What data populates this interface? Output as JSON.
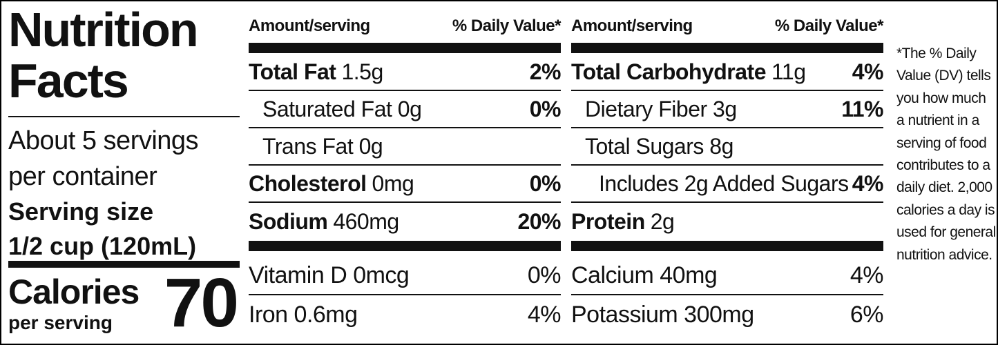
{
  "title": "Nutrition Facts",
  "servings": "About 5 servings per container",
  "serving_size_label": "Serving size",
  "serving_size": "1/2 cup (120mL)",
  "calories_label": "Calories",
  "calories_sub": "per serving",
  "calories": 70,
  "columns": [
    {
      "amount_header": "Amount/serving",
      "dv_header": "% Daily Value*",
      "rows": [
        {
          "name": "Total Fat",
          "amount": "1.5g",
          "dv": "2%",
          "bold": true,
          "indent": 0
        },
        {
          "name": "Saturated Fat 0g",
          "dv": "0%",
          "bold": false,
          "indent": 1
        },
        {
          "name": "Trans Fat 0g",
          "bold": false,
          "indent": 1
        },
        {
          "name": "Cholesterol",
          "amount": "0mg",
          "dv": "0%",
          "bold": true,
          "indent": 0
        },
        {
          "name": "Sodium",
          "amount": "460mg",
          "dv": "20%",
          "bold": true,
          "indent": 0
        }
      ],
      "vitamins": [
        {
          "name": "Vitamin D 0mcg",
          "dv": "0%"
        },
        {
          "name": "Iron 0.6mg",
          "dv": "4%"
        }
      ]
    },
    {
      "amount_header": "Amount/serving",
      "dv_header": "% Daily Value*",
      "rows": [
        {
          "name": "Total Carbohydrate",
          "amount": "11g",
          "dv": "4%",
          "bold": true,
          "indent": 0
        },
        {
          "name": "Dietary Fiber 3g",
          "dv": "11%",
          "bold": false,
          "indent": 1
        },
        {
          "name": "Total Sugars 8g",
          "bold": false,
          "indent": 1
        },
        {
          "name": "Includes 2g Added Sugars",
          "dv": "4%",
          "bold": false,
          "indent": 2
        },
        {
          "name": "Protein",
          "amount": "2g",
          "bold": true,
          "indent": 0
        }
      ],
      "vitamins": [
        {
          "name": "Calcium 40mg",
          "dv": "4%"
        },
        {
          "name": "Potassium 300mg",
          "dv": "6%"
        }
      ]
    }
  ],
  "footnote": "*The % Daily Value (DV) tells you how much a nutrient in a serving of food contributes to a daily diet. 2,000 calories a day is used for general nutrition advice."
}
